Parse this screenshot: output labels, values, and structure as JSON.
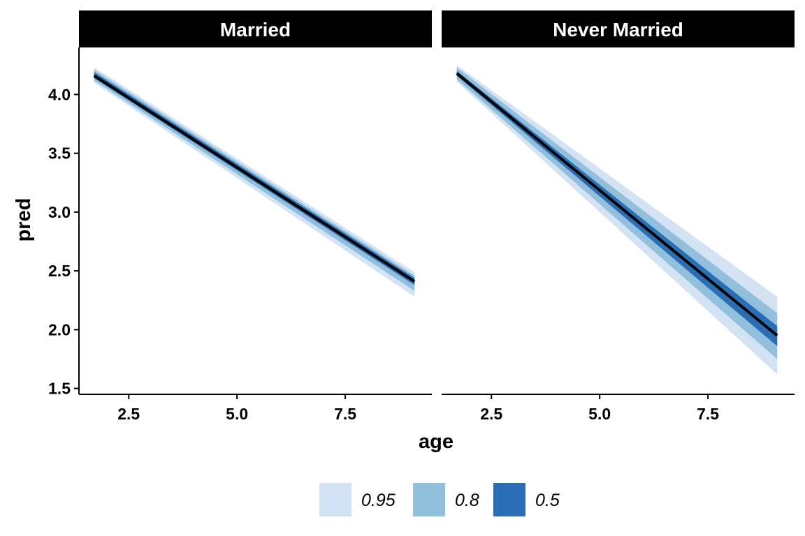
{
  "chart_data": {
    "type": "area",
    "xlabel": "age",
    "ylabel": "pred",
    "xlim": [
      1.35,
      9.5
    ],
    "ylim": [
      1.45,
      4.4
    ],
    "x_ticks": [
      2.5,
      5.0,
      7.5
    ],
    "x_tick_labels": [
      "2.5",
      "5.0",
      "7.5"
    ],
    "y_ticks": [
      1.5,
      2.0,
      2.5,
      3.0,
      3.5,
      4.0
    ],
    "y_tick_labels": [
      "1.5",
      "2.0",
      "2.5",
      "3.0",
      "3.5",
      "4.0"
    ],
    "grid": false,
    "legend_position": "bottom",
    "legend": [
      {
        "label": "0.95",
        "color": "#d3e3f3"
      },
      {
        "label": "0.8",
        "color": "#91bfdc"
      },
      {
        "label": "0.5",
        "color": "#2a6fb5"
      }
    ],
    "line_color": "#000000",
    "panels": [
      {
        "title": "Married",
        "x": [
          1.7,
          9.1
        ],
        "pred": [
          4.16,
          2.41
        ],
        "ci95_lower": [
          4.1,
          2.28
        ],
        "ci95_upper": [
          4.23,
          2.49
        ],
        "ci80_lower": [
          4.12,
          2.33
        ],
        "ci80_upper": [
          4.21,
          2.46
        ],
        "ci50_lower": [
          4.14,
          2.38
        ],
        "ci50_upper": [
          4.19,
          2.44
        ]
      },
      {
        "title": "Never Married",
        "x": [
          1.7,
          9.1
        ],
        "pred": [
          4.18,
          1.95
        ],
        "ci95_lower": [
          4.11,
          1.62
        ],
        "ci95_upper": [
          4.25,
          2.28
        ],
        "ci80_lower": [
          4.13,
          1.75
        ],
        "ci80_upper": [
          4.23,
          2.14
        ],
        "ci50_lower": [
          4.16,
          1.86
        ],
        "ci50_upper": [
          4.2,
          2.03
        ]
      }
    ]
  }
}
